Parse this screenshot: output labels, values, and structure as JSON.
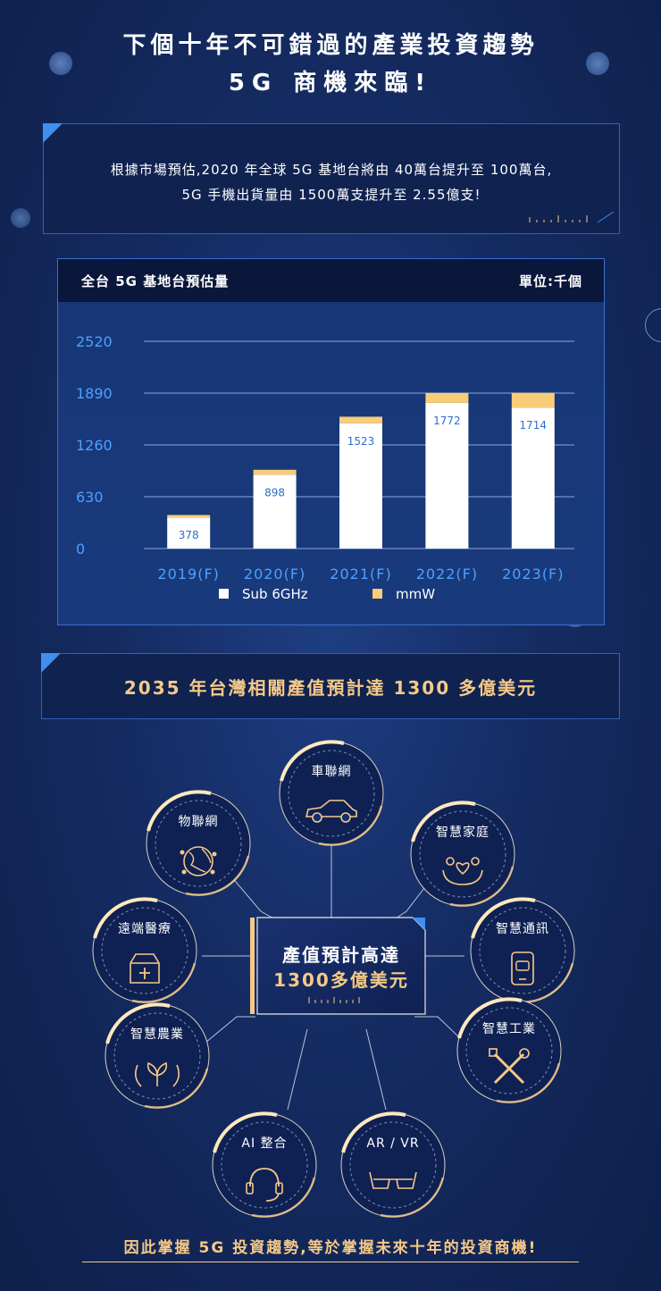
{
  "header": {
    "line1": "下個十年不可錯過的產業投資趨勢",
    "line2": "5G 商機來臨!"
  },
  "intro": {
    "line1": "根據市場預估,2020 年全球 5G 基地台將由 40萬台提升至 100萬台,",
    "line2": "5G 手機出貨量由 1500萬支提升至 2.55億支!"
  },
  "chart_panel": {
    "title": "全台 5G 基地台預估量",
    "unit": "單位:千個"
  },
  "chart_data": {
    "type": "bar",
    "stacked": true,
    "categories": [
      "2019(F)",
      "2020(F)",
      "2021(F)",
      "2022(F)",
      "2023(F)"
    ],
    "series": [
      {
        "name": "Sub 6GHz",
        "values": [
          378,
          898,
          1523,
          1772,
          1714
        ],
        "color": "#ffffff"
      },
      {
        "name": "mmW",
        "values": [
          30,
          60,
          80,
          120,
          180
        ],
        "color": "#f9cd78"
      }
    ],
    "yticks": [
      "0",
      "630",
      "1260",
      "1890",
      "2520"
    ],
    "ylim": [
      0,
      2520
    ],
    "grid": true,
    "legend": "bottom-center",
    "value_label_color": "#2a6fd1"
  },
  "banner": {
    "text": "2035 年台灣相關產值預計達 1300 多億美元"
  },
  "hub": {
    "line1": "產值預計高達",
    "line2": "1300多億美元",
    "colors": {
      "accent": "#f5c987",
      "ring": "#ffe9bd"
    }
  },
  "nodes": [
    {
      "label": "車聯網",
      "icon": "car-icon"
    },
    {
      "label": "物聯網",
      "icon": "globe-network-icon"
    },
    {
      "label": "智慧家庭",
      "icon": "family-heart-icon"
    },
    {
      "label": "遠端醫療",
      "icon": "medical-box-icon"
    },
    {
      "label": "智慧通訊",
      "icon": "phone-chat-icon"
    },
    {
      "label": "智慧農業",
      "icon": "sprout-icon"
    },
    {
      "label": "智慧工業",
      "icon": "tools-icon"
    },
    {
      "label": "AI 整合",
      "icon": "headset-icon"
    },
    {
      "label": "AR / VR",
      "icon": "glasses-icon"
    }
  ],
  "footer": {
    "text": "因此掌握 5G 投資趨勢,等於掌握未來十年的投資商機!"
  }
}
